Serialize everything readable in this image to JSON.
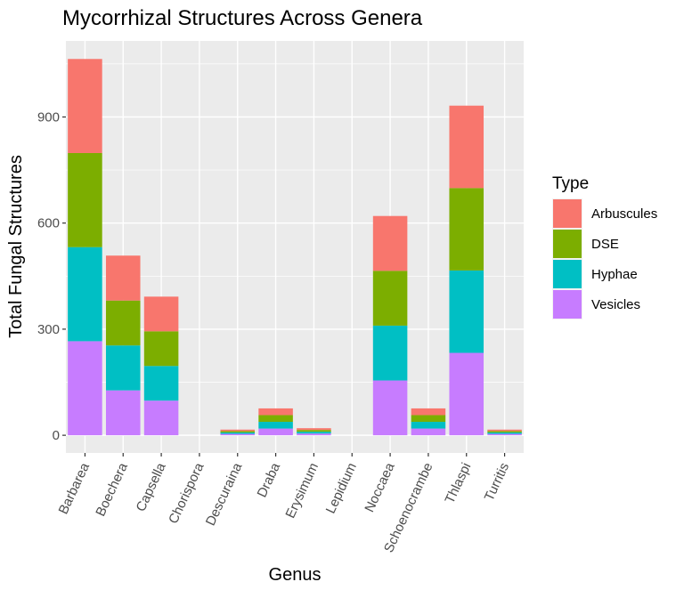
{
  "chart_data": {
    "type": "bar",
    "stacked": true,
    "title": "Mycorrhizal Structures Across Genera",
    "xlabel": "Genus",
    "ylabel": "Total Fungal Structures",
    "categories": [
      "Barbarea",
      "Boechera",
      "Capsella",
      "Chorispora",
      "Descuraina",
      "Draba",
      "Erysimum",
      "Lepidium",
      "Noccaea",
      "Schoenocrambe",
      "Thlaspi",
      "Turritis"
    ],
    "series": [
      {
        "name": "Vesicles",
        "color": "#C77CFF",
        "values": [
          266,
          127,
          98,
          0,
          4,
          19,
          5,
          0,
          155,
          19,
          233,
          4
        ]
      },
      {
        "name": "Hyphae",
        "color": "#00BFC4",
        "values": [
          266,
          127,
          98,
          0,
          4,
          19,
          5,
          0,
          155,
          19,
          233,
          4
        ]
      },
      {
        "name": "DSE",
        "color": "#7CAE00",
        "values": [
          266,
          127,
          98,
          0,
          4,
          19,
          5,
          0,
          155,
          19,
          233,
          4
        ]
      },
      {
        "name": "Arbuscules",
        "color": "#F8766D",
        "values": [
          266,
          127,
          98,
          0,
          4,
          19,
          5,
          0,
          155,
          19,
          233,
          4
        ]
      }
    ],
    "ylim": [
      -50,
      1115
    ],
    "yticks": [
      0,
      300,
      600,
      900
    ],
    "legend": {
      "title": "Type",
      "position": "right",
      "order": [
        "Arbuscules",
        "DSE",
        "Hyphae",
        "Vesicles"
      ]
    },
    "grid": true,
    "panel_color": "#EBEBEB",
    "grid_color": "#FFFFFF"
  }
}
